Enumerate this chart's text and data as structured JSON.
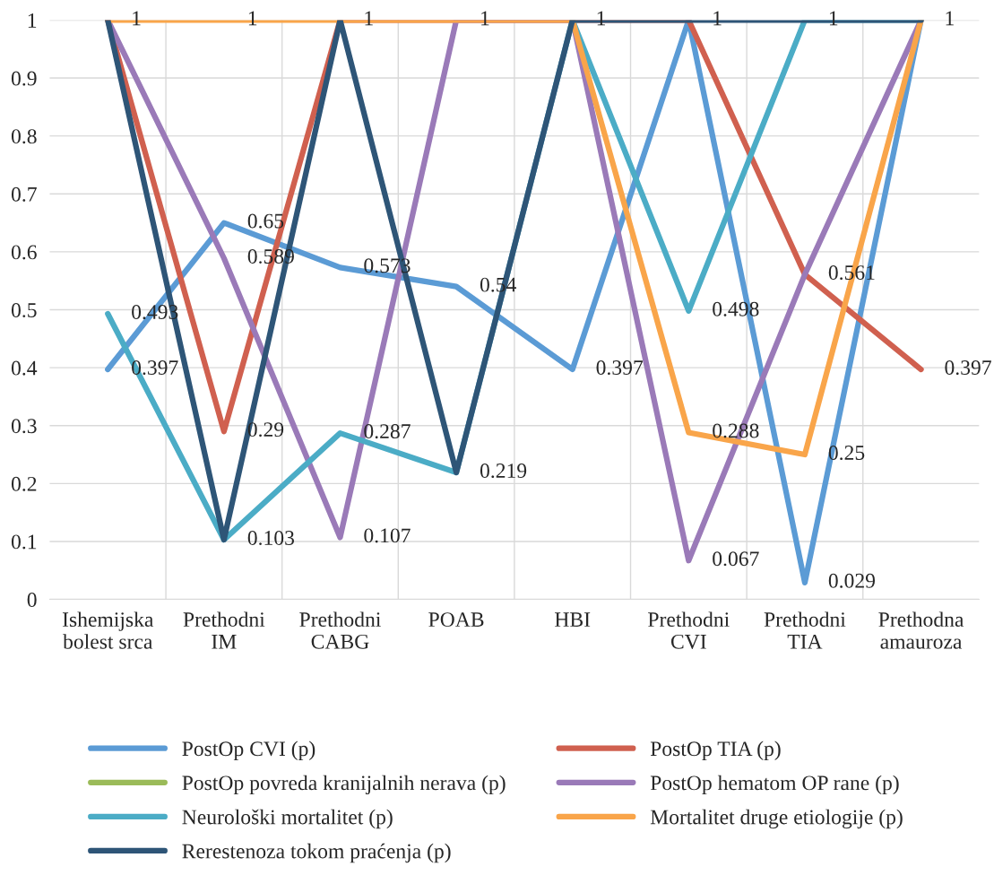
{
  "chart_data": {
    "type": "line",
    "categories": [
      "Ishemijska\nbolest srca",
      "Prethodni\nIM",
      "Prethodni\nCABG",
      "POAB",
      "HBI",
      "Prethodni\nCVI",
      "Prethodni\nTIA",
      "Prethodna\namauroza"
    ],
    "series": [
      {
        "name": "PostOp CVI (p)",
        "color": "#5b9bd5",
        "values": [
          0.397,
          0.65,
          0.573,
          0.54,
          0.397,
          1,
          0.029,
          1
        ],
        "value_labels": [
          "0.397",
          "0.65",
          "0.573",
          "0.54",
          "0.397",
          "1",
          "0.029",
          "1"
        ]
      },
      {
        "name": "PostOp TIA (p)",
        "color": "#d0604f",
        "values": [
          1,
          0.29,
          1,
          1,
          1,
          1,
          0.561,
          0.397
        ],
        "value_labels": [
          "1",
          "0.29",
          "1",
          "1",
          "1",
          null,
          "0.561",
          "0.397"
        ]
      },
      {
        "name": "PostOp povreda kranijalnih nerava (p)",
        "color": "#9bbb59",
        "values": [
          null,
          null,
          null,
          null,
          null,
          null,
          null,
          null
        ]
      },
      {
        "name": "PostOp hematom OP rane (p)",
        "color": "#9a7ab8",
        "values": [
          1,
          0.589,
          0.107,
          1,
          1,
          0.067,
          0.561,
          1
        ],
        "value_labels": [
          null,
          "0.589",
          "0.107",
          null,
          null,
          "0.067",
          null,
          null
        ]
      },
      {
        "name": "Neurološki mortalitet (p)",
        "color": "#4bacc6",
        "values": [
          0.493,
          0.103,
          0.287,
          0.219,
          1,
          0.498,
          1,
          1
        ],
        "value_labels": [
          "0.493",
          "0.103",
          "0.287",
          "0.219",
          null,
          "0.498",
          "1",
          null
        ]
      },
      {
        "name": "Mortalitet druge etiologije (p)",
        "color": "#f9a54a",
        "values": [
          1,
          1,
          1,
          1,
          1,
          0.288,
          0.25,
          1
        ],
        "value_labels": [
          null,
          "1",
          null,
          null,
          null,
          "0.288",
          "0.25",
          null
        ]
      },
      {
        "name": "Rerestenoza tokom praćenja (p)",
        "color": "#2e5577",
        "values": [
          1,
          0.103,
          1,
          0.219,
          1,
          1,
          1,
          1
        ]
      }
    ],
    "ylim": [
      0,
      1
    ],
    "yticks": [
      0,
      0.1,
      0.2,
      0.3,
      0.4,
      0.5,
      0.6,
      0.7,
      0.8,
      0.9,
      1
    ],
    "grid": true,
    "legend": "bottom"
  }
}
